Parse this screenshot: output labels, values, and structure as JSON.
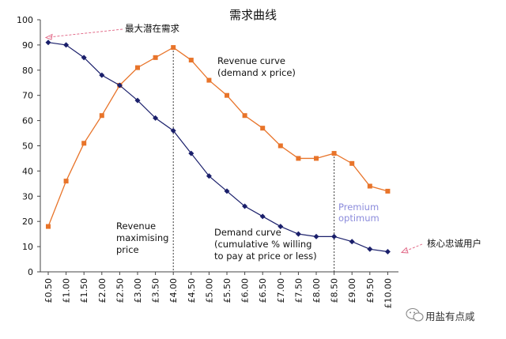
{
  "chart_data": {
    "type": "line",
    "title": "需求曲线",
    "x": [
      "£0.50",
      "£1.00",
      "£1.50",
      "£2.00",
      "£2.50",
      "£3.00",
      "£3.50",
      "£4.00",
      "£4.50",
      "£5.00",
      "£5.50",
      "£6.00",
      "£6.50",
      "£7.00",
      "£7.50",
      "£8.00",
      "£8.50",
      "£9.00",
      "£9.50",
      "£10.00"
    ],
    "ylim": [
      0,
      100
    ],
    "yticks": [
      0,
      10,
      20,
      30,
      40,
      50,
      60,
      70,
      80,
      90,
      100
    ],
    "grid": false,
    "series": [
      {
        "name": "Revenue curve",
        "color": "#e8742a",
        "marker": "square",
        "values": [
          18,
          36,
          51,
          62,
          74,
          81,
          85,
          89,
          84,
          76,
          70,
          62,
          57,
          50,
          45,
          45,
          47,
          43,
          34,
          32
        ]
      },
      {
        "name": "Demand curve",
        "color": "#1a1f6b",
        "marker": "diamond",
        "values": [
          91,
          90,
          85,
          78,
          74,
          68,
          61,
          56,
          47,
          38,
          32,
          26,
          22,
          18,
          15,
          14,
          14,
          12,
          9,
          8
        ]
      }
    ],
    "annotations": {
      "max_demand": "最大潜在需求",
      "revenue_label": [
        "Revenue curve",
        "(demand x price)"
      ],
      "revenue_max": [
        "Revenue",
        "maximising",
        "price"
      ],
      "demand_label": [
        "Demand curve",
        "(cumulative % willing",
        "to pay at price or less)"
      ],
      "premium": [
        "Premium",
        "optimum"
      ],
      "core_users": "核心忠诚用户"
    },
    "markers": {
      "revenue_max_index": 7,
      "premium_index": 16
    }
  },
  "watermark": {
    "text": "用盐有点咸",
    "icon": "wechat-icon"
  }
}
